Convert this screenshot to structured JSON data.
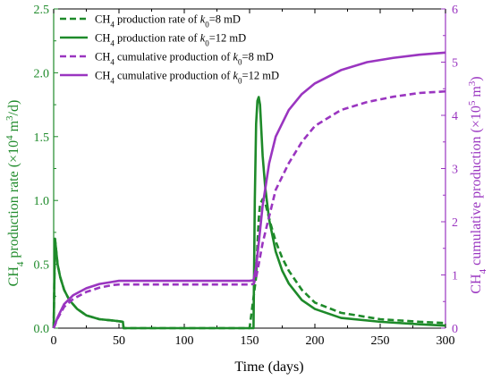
{
  "chart_data": {
    "type": "line",
    "colors": {
      "rate": "#1e8a2a",
      "cumulative": "#9a35c0"
    },
    "x_axis": {
      "label": "Time (days)",
      "range": [
        0,
        300
      ],
      "ticks": [
        0,
        50,
        100,
        150,
        200,
        250,
        300
      ],
      "tick_labels": [
        "0",
        "50",
        "100",
        "150",
        "200",
        "250",
        "300"
      ]
    },
    "y_left": {
      "label": {
        "p1": "CH",
        "sub1": "4",
        "p2": " production rate (×10",
        "sup1": "4",
        "p3": " m",
        "sup2": "3",
        "p4": "/d)"
      },
      "range": [
        0,
        2.5
      ],
      "ticks": [
        0,
        0.5,
        1.0,
        1.5,
        2.0,
        2.5
      ],
      "tick_labels": [
        "0.0",
        "0.5",
        "1.0",
        "1.5",
        "2.0",
        "2.5"
      ]
    },
    "y_right": {
      "label": {
        "p1": "CH",
        "sub1": "4",
        "p2": " cumulative production (×10",
        "sup1": "5",
        "p3": " m",
        "sup2": "3",
        "p4": ")"
      },
      "range": [
        0,
        6
      ],
      "ticks": [
        0,
        1,
        2,
        3,
        4,
        5,
        6
      ],
      "tick_labels": [
        "0",
        "1",
        "2",
        "3",
        "4",
        "5",
        "6"
      ]
    },
    "legend": {
      "position": "top-left",
      "entries": [
        {
          "series": 0,
          "p1": "CH",
          "sub1": "4",
          "p2": " production rate of ",
          "k": "k",
          "sub2": "0",
          "p3": "=8 mD"
        },
        {
          "series": 1,
          "p1": "CH",
          "sub1": "4",
          "p2": " production rate of ",
          "k": "k",
          "sub2": "0",
          "p3": "=12 mD"
        },
        {
          "series": 2,
          "p1": "CH",
          "sub1": "4",
          "p2": " cumulative production of ",
          "k": "k",
          "sub2": "0",
          "p3": "=8 mD"
        },
        {
          "series": 3,
          "p1": "CH",
          "sub1": "4",
          "p2": " cumulative production of ",
          "k": "k",
          "sub2": "0",
          "p3": "=12 mD"
        }
      ]
    },
    "series": [
      {
        "name": "CH4 production rate of k0=8 mD",
        "axis": "left",
        "color": "#1e8a2a",
        "dash": true,
        "x": [
          0,
          1,
          3,
          5,
          8,
          12,
          18,
          25,
          35,
          45,
          53,
          53.5,
          60,
          100,
          150,
          155,
          156,
          157,
          158,
          160,
          162,
          164,
          166,
          170,
          175,
          180,
          190,
          200,
          220,
          250,
          280,
          300
        ],
        "y": [
          0.0,
          0.7,
          0.5,
          0.4,
          0.3,
          0.22,
          0.15,
          0.1,
          0.07,
          0.06,
          0.05,
          0.0,
          0.0,
          0.0,
          0.0,
          0.4,
          0.65,
          0.85,
          0.97,
          1.01,
          0.98,
          0.9,
          0.82,
          0.68,
          0.55,
          0.45,
          0.3,
          0.2,
          0.12,
          0.07,
          0.05,
          0.04
        ]
      },
      {
        "name": "CH4 production rate of k0=12 mD",
        "axis": "left",
        "color": "#1e8a2a",
        "dash": false,
        "x": [
          0,
          1,
          3,
          5,
          8,
          12,
          18,
          25,
          35,
          45,
          53,
          53.5,
          60,
          100,
          150,
          153,
          154,
          155,
          156,
          157,
          158,
          159,
          160,
          162,
          165,
          170,
          175,
          180,
          190,
          200,
          220,
          250,
          280,
          300
        ],
        "y": [
          0.0,
          0.7,
          0.5,
          0.4,
          0.3,
          0.22,
          0.15,
          0.1,
          0.07,
          0.06,
          0.05,
          0.0,
          0.0,
          0.0,
          0.0,
          0.0,
          1.0,
          1.6,
          1.78,
          1.81,
          1.75,
          1.55,
          1.35,
          1.1,
          0.85,
          0.6,
          0.45,
          0.35,
          0.22,
          0.15,
          0.08,
          0.05,
          0.03,
          0.02
        ]
      },
      {
        "name": "CH4 cumulative production of k0=8 mD",
        "axis": "right",
        "color": "#9a35c0",
        "dash": true,
        "x": [
          0,
          3,
          8,
          15,
          25,
          35,
          45,
          50,
          53,
          60,
          100,
          150,
          153,
          155,
          157,
          160,
          165,
          170,
          180,
          190,
          200,
          220,
          240,
          260,
          280,
          300
        ],
        "y": [
          0,
          0.18,
          0.4,
          0.55,
          0.68,
          0.76,
          0.81,
          0.82,
          0.82,
          0.82,
          0.82,
          0.82,
          0.83,
          0.95,
          1.2,
          1.6,
          2.1,
          2.6,
          3.1,
          3.5,
          3.8,
          4.1,
          4.25,
          4.35,
          4.42,
          4.45
        ]
      },
      {
        "name": "CH4 cumulative production of k0=12 mD",
        "axis": "right",
        "color": "#9a35c0",
        "dash": false,
        "x": [
          0,
          3,
          8,
          15,
          25,
          35,
          45,
          50,
          53,
          60,
          100,
          150,
          153,
          155,
          157,
          160,
          165,
          170,
          180,
          190,
          200,
          220,
          240,
          260,
          280,
          300
        ],
        "y": [
          0,
          0.2,
          0.45,
          0.62,
          0.75,
          0.83,
          0.87,
          0.89,
          0.89,
          0.89,
          0.89,
          0.89,
          0.9,
          1.15,
          1.6,
          2.3,
          3.1,
          3.6,
          4.1,
          4.4,
          4.6,
          4.85,
          5.0,
          5.08,
          5.14,
          5.18
        ]
      }
    ]
  }
}
